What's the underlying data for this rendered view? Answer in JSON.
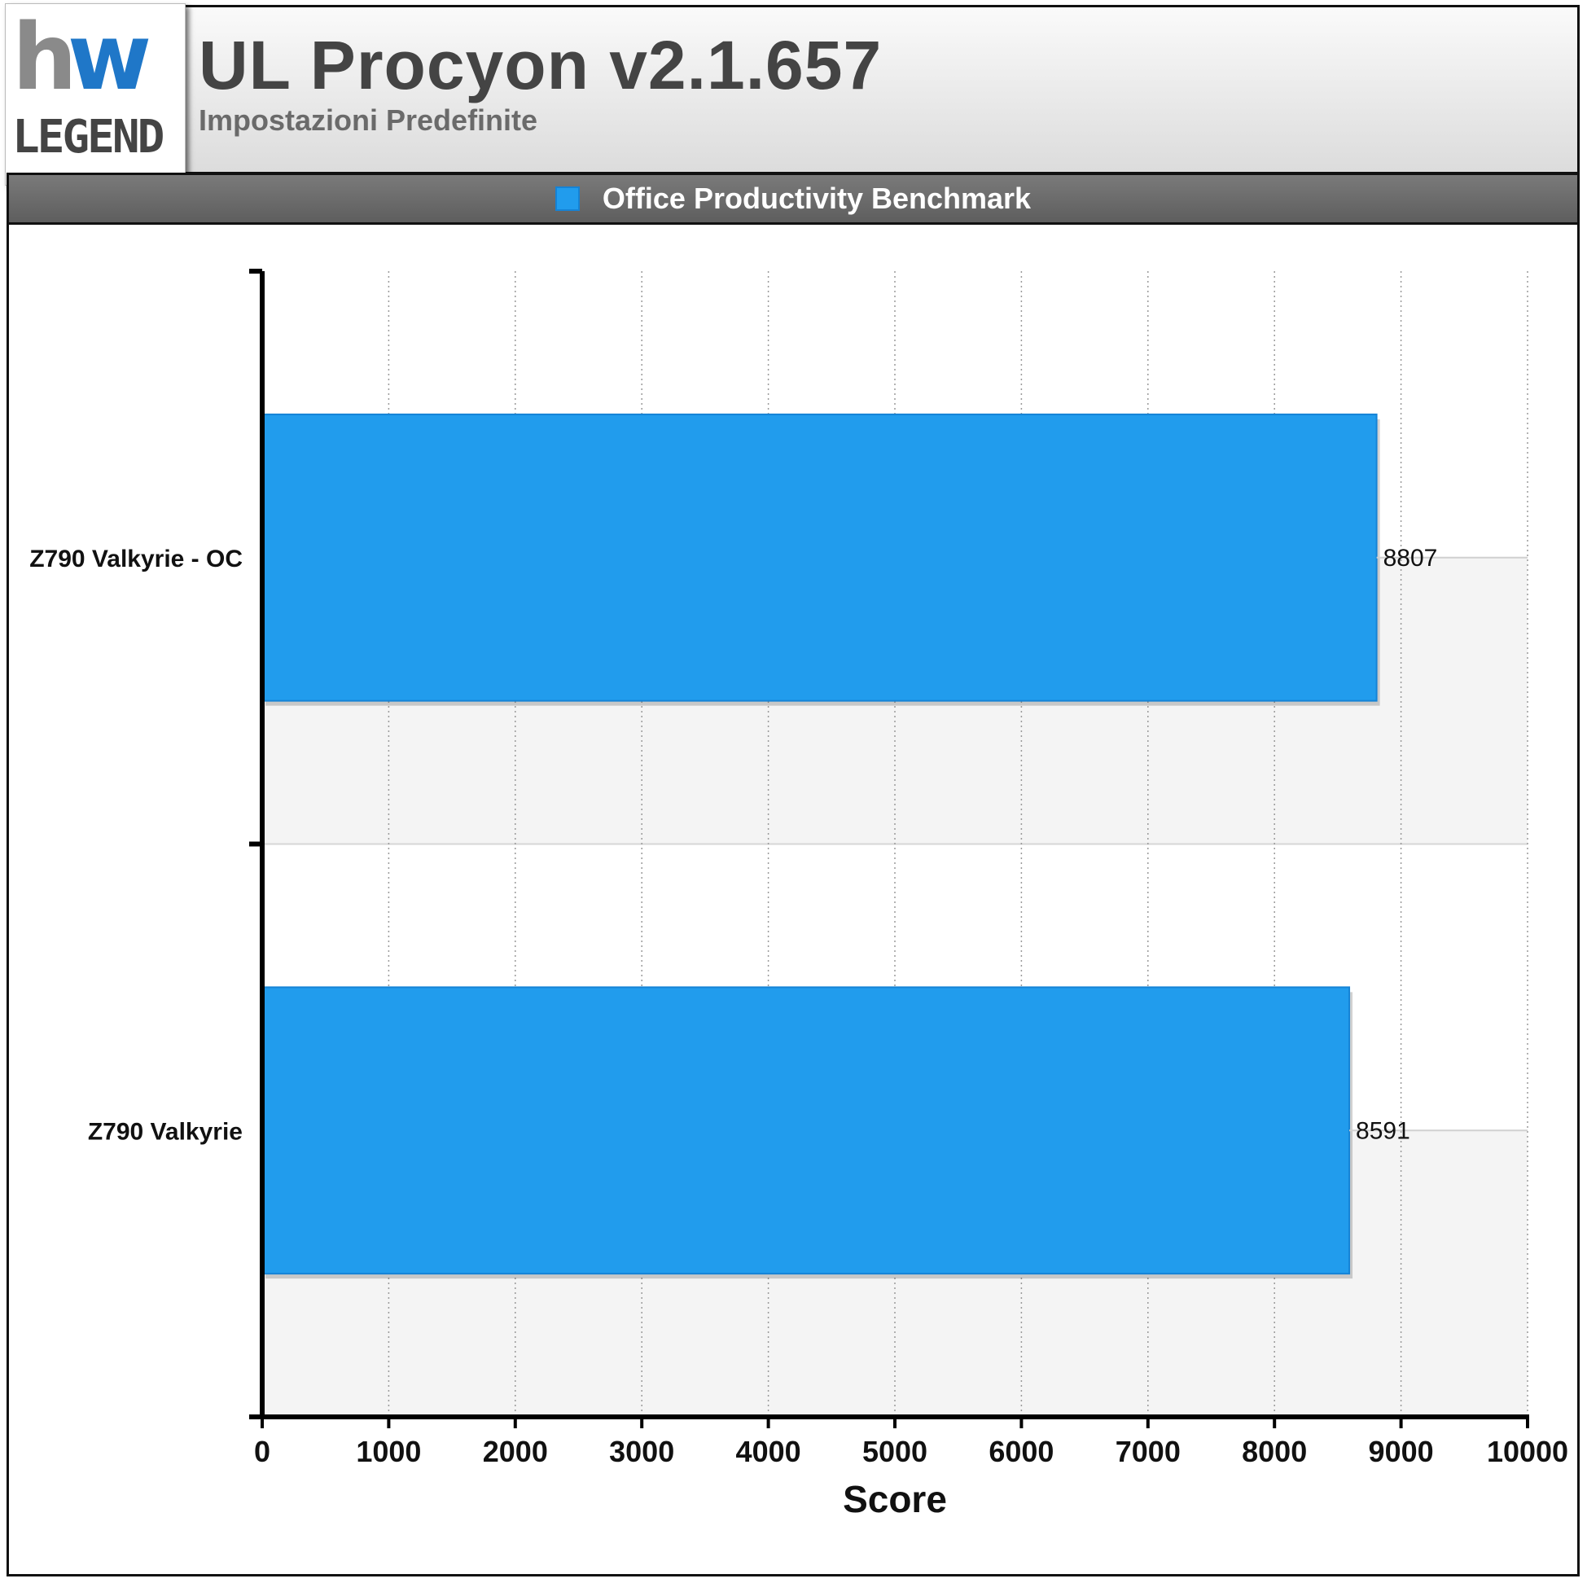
{
  "header": {
    "title": "UL Procyon v2.1.657",
    "subtitle": "Impostazioni Predefinite",
    "logo_top": "hw",
    "logo_bottom": "LEGEND"
  },
  "legend": {
    "label": "Office Productivity Benchmark",
    "color": "#219ced"
  },
  "chart_data": {
    "type": "bar",
    "orientation": "horizontal",
    "categories": [
      "Z790 Valkyrie - OC",
      "Z790 Valkyrie"
    ],
    "series": [
      {
        "name": "Office Productivity Benchmark",
        "values": [
          8807,
          8591
        ],
        "color": "#219ced"
      }
    ],
    "xlabel": "Score",
    "ylabel": "",
    "xlim": [
      0,
      10000
    ],
    "xticks": [
      0,
      1000,
      2000,
      3000,
      4000,
      5000,
      6000,
      7000,
      8000,
      9000,
      10000
    ],
    "data_labels": [
      "8807",
      "8591"
    ],
    "grid": "vertical dotted",
    "legend_position": "top"
  }
}
